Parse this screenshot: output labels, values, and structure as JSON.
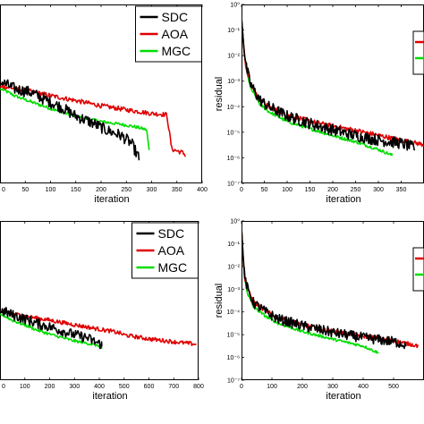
{
  "colors": {
    "SDC": "#000000",
    "AOA": "#e00000",
    "MGC": "#00dd00"
  },
  "chart_data": [
    {
      "type": "line",
      "panel": "top-left",
      "xlabel": "iteration",
      "ylabel": "",
      "yscale": "log",
      "xlim": [
        0,
        400
      ],
      "ylim": [
        1e-07,
        1
      ],
      "xticks": [
        0,
        50,
        100,
        150,
        200,
        250,
        300,
        350,
        400
      ],
      "yticks": [],
      "legend": {
        "placement": "top-right",
        "entries": [
          "SDC",
          "AOA",
          "MGC"
        ]
      },
      "series": [
        {
          "name": "SDC",
          "x": [
            0,
            30,
            60,
            90,
            120,
            150,
            180,
            210,
            240,
            260,
            275
          ],
          "y": [
            0.0008,
            0.0004,
            0.0003,
            0.00015,
            8e-05,
            3.5e-05,
            2e-05,
            1e-05,
            6e-06,
            3e-06,
            8e-07
          ]
        },
        {
          "name": "AOA",
          "x": [
            0,
            50,
            100,
            150,
            200,
            250,
            300,
            330,
            340,
            360,
            367
          ],
          "y": [
            0.0006,
            0.0004,
            0.00025,
            0.00016,
            0.0001,
            7e-05,
            5e-05,
            4.5e-05,
            2e-06,
            1.5e-06,
            1.2e-06
          ]
        },
        {
          "name": "MGC",
          "x": [
            0,
            30,
            60,
            100,
            150,
            200,
            250,
            270,
            290,
            295
          ],
          "y": [
            0.0005,
            0.00025,
            0.00015,
            8e-05,
            4e-05,
            2.5e-05,
            1.8e-05,
            1.5e-05,
            1.2e-05,
            2e-06
          ]
        }
      ]
    },
    {
      "type": "line",
      "panel": "top-right",
      "xlabel": "iteration",
      "ylabel": "residual",
      "yscale": "log",
      "xlim": [
        0,
        400
      ],
      "ylim": [
        1e-07,
        1
      ],
      "xticks": [
        0,
        50,
        100,
        150,
        200,
        250,
        300,
        350
      ],
      "yticks": [
        1e-07,
        1e-06,
        1e-05,
        0.0001,
        0.001,
        0.01,
        0.1,
        1
      ],
      "ytick_labels": [
        "10⁻⁷",
        "10⁻⁶",
        "10⁻⁵",
        "10⁻⁴",
        "10⁻³",
        "10⁻²",
        "10⁻¹",
        "10⁰"
      ],
      "series": [
        {
          "name": "SDC",
          "x": [
            0,
            5,
            10,
            20,
            40,
            60,
            100,
            150,
            200,
            250,
            300,
            350,
            380
          ],
          "y": [
            0.3,
            0.02,
            0.003,
            0.0006,
            0.00015,
            8e-05,
            3.5e-05,
            1.8e-05,
            1e-05,
            6e-06,
            4e-06,
            3e-06,
            2e-06
          ]
        },
        {
          "name": "AOA",
          "x": [
            0,
            5,
            10,
            20,
            40,
            60,
            100,
            150,
            200,
            250,
            300,
            350,
            400
          ],
          "y": [
            0.3,
            0.02,
            0.003,
            0.0007,
            0.00018,
            9e-05,
            4.5e-05,
            2.5e-05,
            1.6e-05,
            1.1e-05,
            7e-06,
            4.5e-06,
            3e-06
          ]
        },
        {
          "name": "MGC",
          "x": [
            0,
            5,
            10,
            20,
            40,
            60,
            100,
            150,
            200,
            250,
            300,
            330
          ],
          "y": [
            0.3,
            0.02,
            0.003,
            0.0005,
            0.00012,
            6e-05,
            2.5e-05,
            1.3e-05,
            7e-06,
            4e-06,
            2e-06,
            1.2e-06
          ]
        }
      ]
    },
    {
      "type": "line",
      "panel": "bottom-left",
      "xlabel": "iteration",
      "ylabel": "",
      "yscale": "log",
      "xlim": [
        0,
        800
      ],
      "ylim": [
        1e-07,
        1
      ],
      "xticks": [
        0,
        100,
        200,
        300,
        400,
        500,
        600,
        700,
        800
      ],
      "yticks": [],
      "legend": {
        "placement": "top-right",
        "entries": [
          "SDC",
          "AOA",
          "MGC"
        ]
      },
      "series": [
        {
          "name": "SDC",
          "x": [
            0,
            50,
            100,
            150,
            200,
            250,
            300,
            350,
            380,
            410
          ],
          "y": [
            0.0001,
            6e-05,
            4e-05,
            2.5e-05,
            1.8e-05,
            1.2e-05,
            8e-06,
            6e-06,
            4e-06,
            3e-06
          ]
        },
        {
          "name": "AOA",
          "x": [
            0,
            100,
            200,
            300,
            400,
            450,
            480,
            500,
            600,
            700,
            790
          ],
          "y": [
            0.0001,
            6e-05,
            4e-05,
            2.5e-05,
            1.6e-05,
            1.3e-05,
            1.1e-05,
            9e-06,
            6e-06,
            4.5e-06,
            3.5e-06
          ]
        },
        {
          "name": "MGC",
          "x": [
            0,
            50,
            100,
            150,
            200,
            250,
            300,
            350,
            400,
            410
          ],
          "y": [
            8e-05,
            4e-05,
            2.5e-05,
            1.5e-05,
            1e-05,
            7e-06,
            5e-06,
            4e-06,
            3e-06,
            2.5e-06
          ]
        }
      ]
    },
    {
      "type": "line",
      "panel": "bottom-right",
      "xlabel": "iteration",
      "ylabel": "residual",
      "yscale": "log",
      "xlim": [
        0,
        600
      ],
      "ylim": [
        1e-07,
        1
      ],
      "xticks": [
        0,
        100,
        200,
        300,
        400,
        500
      ],
      "yticks": [
        1e-07,
        1e-06,
        1e-05,
        0.0001,
        0.001,
        0.01,
        0.1,
        1
      ],
      "ytick_labels": [
        "10⁻⁷",
        "10⁻⁶",
        "10⁻⁵",
        "10⁻⁴",
        "10⁻³",
        "10⁻²",
        "10⁻¹",
        "10⁰"
      ],
      "series": [
        {
          "name": "SDC",
          "x": [
            0,
            5,
            10,
            20,
            40,
            80,
            120,
            200,
            300,
            400,
            500,
            540
          ],
          "y": [
            0.5,
            0.03,
            0.003,
            0.0008,
            0.0002,
            8e-05,
            4e-05,
            2e-05,
            1e-05,
            6e-06,
            4e-06,
            3e-06
          ]
        },
        {
          "name": "AOA",
          "x": [
            0,
            5,
            10,
            20,
            40,
            80,
            120,
            200,
            300,
            400,
            500,
            580
          ],
          "y": [
            0.5,
            0.03,
            0.003,
            0.0009,
            0.00025,
            0.0001,
            5e-05,
            2.5e-05,
            1.3e-05,
            8e-06,
            5e-06,
            3e-06
          ]
        },
        {
          "name": "MGC",
          "x": [
            0,
            5,
            10,
            20,
            40,
            80,
            120,
            200,
            300,
            400,
            450
          ],
          "y": [
            0.5,
            0.03,
            0.003,
            0.0006,
            0.00015,
            6e-05,
            3e-05,
            1.3e-05,
            6e-06,
            3e-06,
            1.5e-06
          ]
        }
      ]
    }
  ]
}
